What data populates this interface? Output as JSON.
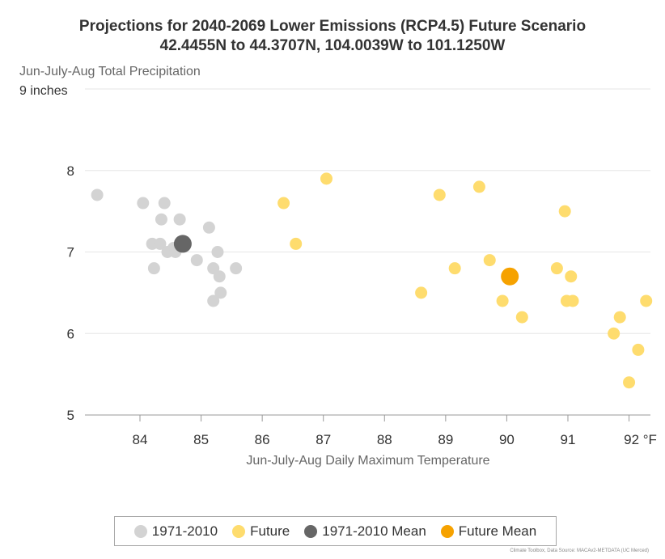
{
  "chart_data": {
    "type": "scatter",
    "title_line1": "Projections for 2040-2069 Lower Emissions (RCP4.5) Future Scenario",
    "title_line2": "42.4455N to 44.3707N, 104.0039W to 101.1250W",
    "ylabel": "Jun-July-Aug Total Precipitation",
    "ytop_label": "9 inches",
    "xlabel": "Jun-July-Aug Daily Maximum Temperature",
    "xlim": [
      83.1,
      92.35
    ],
    "ylim": [
      5,
      9
    ],
    "xticks": [
      {
        "value": 84,
        "label": "84"
      },
      {
        "value": 85,
        "label": "85"
      },
      {
        "value": 86,
        "label": "86"
      },
      {
        "value": 87,
        "label": "87"
      },
      {
        "value": 88,
        "label": "88"
      },
      {
        "value": 89,
        "label": "89"
      },
      {
        "value": 90,
        "label": "90"
      },
      {
        "value": 91,
        "label": "91"
      },
      {
        "value": 92,
        "label": "92 °F"
      }
    ],
    "yticks": [
      {
        "value": 5,
        "label": "5"
      },
      {
        "value": 6,
        "label": "6"
      },
      {
        "value": 7,
        "label": "7"
      },
      {
        "value": 8,
        "label": "8"
      }
    ],
    "grid": true,
    "legend_position": "bottom",
    "series": [
      {
        "name": "1971-2010",
        "color": "#d3d3d3",
        "points": [
          [
            83.3,
            7.7
          ],
          [
            84.05,
            7.6
          ],
          [
            84.4,
            7.6
          ],
          [
            84.35,
            7.4
          ],
          [
            84.65,
            7.4
          ],
          [
            84.2,
            7.1
          ],
          [
            84.33,
            7.1
          ],
          [
            84.55,
            7.05
          ],
          [
            84.45,
            7.0
          ],
          [
            84.58,
            7.0
          ],
          [
            84.23,
            6.8
          ],
          [
            84.93,
            6.9
          ],
          [
            85.13,
            7.3
          ],
          [
            85.27,
            7.0
          ],
          [
            85.2,
            6.8
          ],
          [
            85.3,
            6.7
          ],
          [
            85.57,
            6.8
          ],
          [
            85.32,
            6.5
          ],
          [
            85.2,
            6.4
          ]
        ]
      },
      {
        "name": "Future",
        "color": "#fedc6e",
        "points": [
          [
            86.35,
            7.6
          ],
          [
            86.55,
            7.1
          ],
          [
            87.05,
            7.9
          ],
          [
            88.6,
            6.5
          ],
          [
            88.9,
            7.7
          ],
          [
            89.15,
            6.8
          ],
          [
            89.55,
            7.8
          ],
          [
            89.72,
            6.9
          ],
          [
            89.93,
            6.4
          ],
          [
            90.25,
            6.2
          ],
          [
            90.82,
            6.8
          ],
          [
            90.95,
            7.5
          ],
          [
            90.98,
            6.4
          ],
          [
            91.05,
            6.7
          ],
          [
            91.08,
            6.4
          ],
          [
            91.75,
            6.0
          ],
          [
            91.85,
            6.2
          ],
          [
            92.0,
            5.4
          ],
          [
            92.15,
            5.8
          ],
          [
            92.28,
            6.4
          ]
        ]
      },
      {
        "name": "1971-2010 Mean",
        "color": "#666666",
        "points": [
          [
            84.7,
            7.1
          ]
        ]
      },
      {
        "name": "Future Mean",
        "color": "#f6a200",
        "points": [
          [
            90.05,
            6.7
          ]
        ]
      }
    ],
    "credit": "Climate Toolbox, Data Source: MACAv2-METDATA (UC Merced)"
  }
}
